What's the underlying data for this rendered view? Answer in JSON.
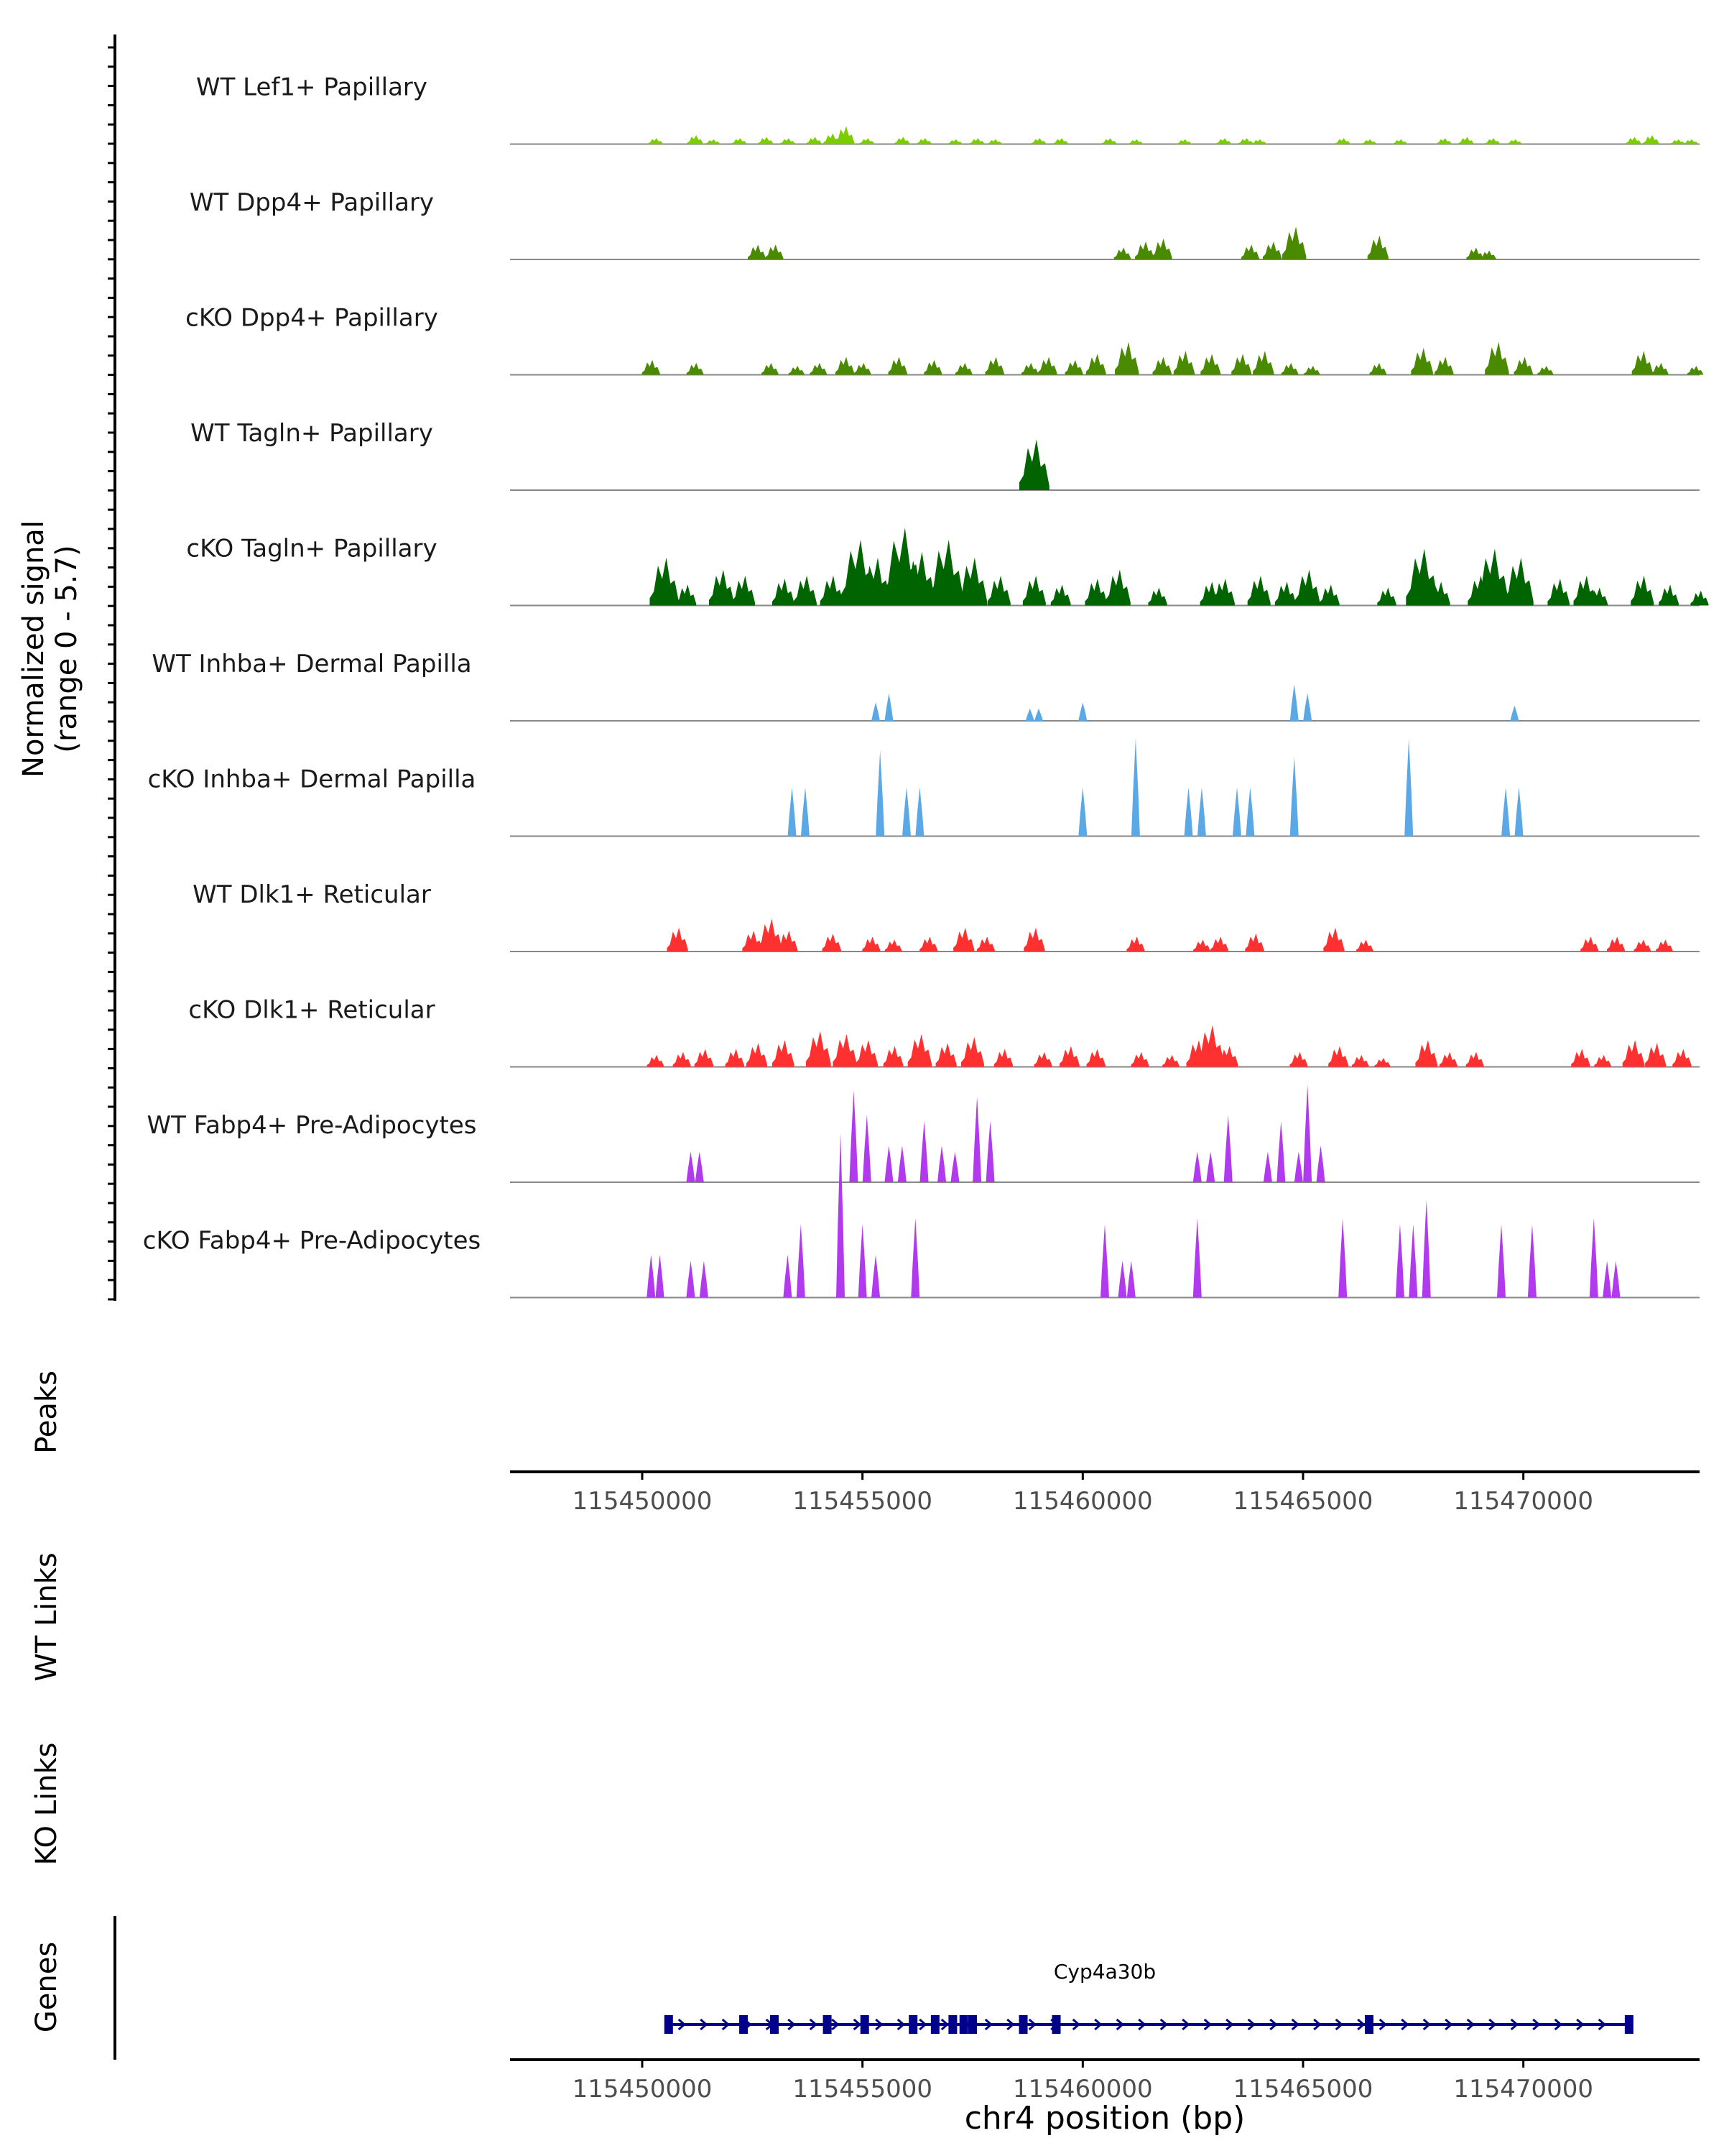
{
  "chart_data": {
    "type": "coverage-tracks",
    "region": {
      "chromosome": "chr4",
      "start": 115447000,
      "end": 115474000
    },
    "y_axis_label": "Normalized signal\n(range 0 - 5.7)",
    "y_range": [
      0,
      5.7
    ],
    "x_axis_label": "chr4 position (bp)",
    "x_ticks": [
      115450000,
      115455000,
      115460000,
      115465000,
      115470000
    ],
    "x_tick_labels": [
      "115450000",
      "115455000",
      "115460000",
      "115465000",
      "115470000"
    ],
    "colors": {
      "lef1": "#7CCD00",
      "dpp4": "#4A8A00",
      "tagln": "#006400",
      "inhba": "#5AA9E6",
      "dlk1": "#FF3030",
      "fabp4": "#B23AEE",
      "gene": "#00008B",
      "baseline": "#888888"
    },
    "tracks": [
      {
        "label": "WT Lef1+ Papillary",
        "color_key": "lef1",
        "style": "dense",
        "peaks": [
          [
            115450300,
            0.1
          ],
          [
            115451200,
            0.15
          ],
          [
            115451600,
            0.08
          ],
          [
            115452200,
            0.1
          ],
          [
            115452800,
            0.12
          ],
          [
            115453300,
            0.1
          ],
          [
            115453900,
            0.12
          ],
          [
            115454300,
            0.18
          ],
          [
            115454600,
            0.3
          ],
          [
            115455100,
            0.1
          ],
          [
            115455900,
            0.12
          ],
          [
            115456400,
            0.1
          ],
          [
            115457100,
            0.08
          ],
          [
            115457600,
            0.1
          ],
          [
            115458000,
            0.08
          ],
          [
            115459000,
            0.1
          ],
          [
            115459500,
            0.1
          ],
          [
            115460600,
            0.1
          ],
          [
            115461200,
            0.08
          ],
          [
            115462300,
            0.08
          ],
          [
            115463200,
            0.1
          ],
          [
            115463700,
            0.1
          ],
          [
            115464000,
            0.08
          ],
          [
            115465900,
            0.1
          ],
          [
            115466500,
            0.08
          ],
          [
            115467200,
            0.08
          ],
          [
            115468200,
            0.1
          ],
          [
            115468700,
            0.12
          ],
          [
            115469300,
            0.1
          ],
          [
            115469800,
            0.08
          ],
          [
            115472500,
            0.12
          ],
          [
            115472900,
            0.15
          ],
          [
            115473500,
            0.08
          ],
          [
            115473800,
            0.08
          ]
        ]
      },
      {
        "label": "WT Dpp4+ Papillary",
        "color_key": "dpp4",
        "style": "dense",
        "peaks": [
          [
            115452600,
            0.25
          ],
          [
            115453000,
            0.25
          ],
          [
            115460900,
            0.2
          ],
          [
            115461400,
            0.3
          ],
          [
            115461800,
            0.35
          ],
          [
            115463800,
            0.25
          ],
          [
            115464300,
            0.3
          ],
          [
            115464800,
            0.55
          ],
          [
            115466700,
            0.4
          ],
          [
            115468900,
            0.2
          ],
          [
            115469200,
            0.15
          ]
        ]
      },
      {
        "label": "cKO Dpp4+ Papillary",
        "color_key": "dpp4",
        "style": "dense",
        "peaks": [
          [
            115450200,
            0.25
          ],
          [
            115451200,
            0.2
          ],
          [
            115452900,
            0.2
          ],
          [
            115453500,
            0.15
          ],
          [
            115454000,
            0.2
          ],
          [
            115454600,
            0.3
          ],
          [
            115455000,
            0.2
          ],
          [
            115455800,
            0.3
          ],
          [
            115456600,
            0.25
          ],
          [
            115457300,
            0.2
          ],
          [
            115458000,
            0.3
          ],
          [
            115458800,
            0.2
          ],
          [
            115459200,
            0.3
          ],
          [
            115459800,
            0.25
          ],
          [
            115460300,
            0.35
          ],
          [
            115461000,
            0.55
          ],
          [
            115461800,
            0.3
          ],
          [
            115462300,
            0.4
          ],
          [
            115462900,
            0.35
          ],
          [
            115463600,
            0.35
          ],
          [
            115464100,
            0.4
          ],
          [
            115464700,
            0.2
          ],
          [
            115465200,
            0.15
          ],
          [
            115466700,
            0.2
          ],
          [
            115467700,
            0.45
          ],
          [
            115468200,
            0.3
          ],
          [
            115469400,
            0.55
          ],
          [
            115470000,
            0.3
          ],
          [
            115470500,
            0.15
          ],
          [
            115472700,
            0.4
          ],
          [
            115473100,
            0.2
          ],
          [
            115473900,
            0.15
          ]
        ]
      },
      {
        "label": "WT Tagln+ Papillary",
        "color_key": "tagln",
        "style": "dense",
        "peaks": [
          [
            115458900,
            0.85
          ]
        ]
      },
      {
        "label": "cKO Tagln+ Papillary",
        "color_key": "tagln",
        "style": "dense",
        "peaks": [
          [
            115450500,
            0.8
          ],
          [
            115451000,
            0.35
          ],
          [
            115451800,
            0.6
          ],
          [
            115452300,
            0.5
          ],
          [
            115453200,
            0.45
          ],
          [
            115453700,
            0.5
          ],
          [
            115454300,
            0.5
          ],
          [
            115454900,
            1.1
          ],
          [
            115455300,
            0.8
          ],
          [
            115455900,
            1.3
          ],
          [
            115456300,
            0.9
          ],
          [
            115456900,
            1.1
          ],
          [
            115457500,
            0.8
          ],
          [
            115458100,
            0.5
          ],
          [
            115458900,
            0.5
          ],
          [
            115459500,
            0.35
          ],
          [
            115460300,
            0.45
          ],
          [
            115460800,
            0.6
          ],
          [
            115461700,
            0.3
          ],
          [
            115462900,
            0.4
          ],
          [
            115463200,
            0.45
          ],
          [
            115464000,
            0.5
          ],
          [
            115464600,
            0.4
          ],
          [
            115465100,
            0.6
          ],
          [
            115465600,
            0.35
          ],
          [
            115466900,
            0.3
          ],
          [
            115467700,
            0.95
          ],
          [
            115468100,
            0.4
          ],
          [
            115469000,
            0.5
          ],
          [
            115469300,
            0.95
          ],
          [
            115469900,
            0.8
          ],
          [
            115470800,
            0.45
          ],
          [
            115471400,
            0.5
          ],
          [
            115471700,
            0.3
          ],
          [
            115472700,
            0.5
          ],
          [
            115473300,
            0.35
          ],
          [
            115474000,
            0.25
          ]
        ]
      },
      {
        "label": "WT Inhba+ Dermal Papilla",
        "color_key": "inhba",
        "style": "spiky",
        "peaks": [
          [
            115455300,
            0.3
          ],
          [
            115455600,
            0.45
          ],
          [
            115458800,
            0.2
          ],
          [
            115459000,
            0.2
          ],
          [
            115460000,
            0.3
          ],
          [
            115464800,
            0.6
          ],
          [
            115465100,
            0.45
          ],
          [
            115469800,
            0.25
          ]
        ]
      },
      {
        "label": "cKO Inhba+ Dermal Papilla",
        "color_key": "inhba",
        "style": "spiky",
        "peaks": [
          [
            115453400,
            0.8
          ],
          [
            115453700,
            0.8
          ],
          [
            115455400,
            1.4
          ],
          [
            115456000,
            0.8
          ],
          [
            115456300,
            0.8
          ],
          [
            115460000,
            0.8
          ],
          [
            115461200,
            1.6
          ],
          [
            115462400,
            0.8
          ],
          [
            115462700,
            0.8
          ],
          [
            115463500,
            0.8
          ],
          [
            115463800,
            0.8
          ],
          [
            115464800,
            1.3
          ],
          [
            115467400,
            1.6
          ],
          [
            115469600,
            0.8
          ],
          [
            115469900,
            0.8
          ]
        ]
      },
      {
        "label": "WT Dlk1+ Reticular",
        "color_key": "dlk1",
        "style": "dense",
        "peaks": [
          [
            115450800,
            0.4
          ],
          [
            115452500,
            0.35
          ],
          [
            115452900,
            0.55
          ],
          [
            115453300,
            0.35
          ],
          [
            115454300,
            0.3
          ],
          [
            115455200,
            0.25
          ],
          [
            115455700,
            0.2
          ],
          [
            115456500,
            0.25
          ],
          [
            115457300,
            0.4
          ],
          [
            115457800,
            0.25
          ],
          [
            115458900,
            0.4
          ],
          [
            115461200,
            0.25
          ],
          [
            115462700,
            0.2
          ],
          [
            115463100,
            0.25
          ],
          [
            115463900,
            0.3
          ],
          [
            115465700,
            0.4
          ],
          [
            115466400,
            0.2
          ],
          [
            115471500,
            0.25
          ],
          [
            115472100,
            0.25
          ],
          [
            115472700,
            0.2
          ],
          [
            115473200,
            0.2
          ]
        ]
      },
      {
        "label": "cKO Dlk1+ Reticular",
        "color_key": "dlk1",
        "style": "dense",
        "peaks": [
          [
            115450300,
            0.2
          ],
          [
            115450900,
            0.25
          ],
          [
            115451400,
            0.3
          ],
          [
            115452100,
            0.3
          ],
          [
            115452600,
            0.4
          ],
          [
            115453200,
            0.45
          ],
          [
            115454000,
            0.6
          ],
          [
            115454600,
            0.55
          ],
          [
            115455100,
            0.45
          ],
          [
            115455700,
            0.35
          ],
          [
            115456300,
            0.55
          ],
          [
            115456900,
            0.4
          ],
          [
            115457500,
            0.5
          ],
          [
            115458200,
            0.3
          ],
          [
            115459100,
            0.25
          ],
          [
            115459700,
            0.35
          ],
          [
            115460300,
            0.3
          ],
          [
            115461300,
            0.25
          ],
          [
            115462000,
            0.2
          ],
          [
            115462600,
            0.45
          ],
          [
            115462900,
            0.7
          ],
          [
            115463300,
            0.35
          ],
          [
            115464900,
            0.25
          ],
          [
            115465800,
            0.35
          ],
          [
            115466300,
            0.2
          ],
          [
            115466800,
            0.15
          ],
          [
            115467800,
            0.45
          ],
          [
            115468300,
            0.25
          ],
          [
            115468900,
            0.25
          ],
          [
            115471300,
            0.3
          ],
          [
            115471800,
            0.2
          ],
          [
            115472500,
            0.45
          ],
          [
            115473000,
            0.4
          ],
          [
            115473600,
            0.3
          ]
        ]
      },
      {
        "label": "WT Fabp4+ Pre-Adipocytes",
        "color_key": "fabp4",
        "style": "spiky",
        "peaks": [
          [
            115451100,
            0.5
          ],
          [
            115451300,
            0.5
          ],
          [
            115454800,
            1.5
          ],
          [
            115455100,
            1.1
          ],
          [
            115455600,
            0.6
          ],
          [
            115455900,
            0.6
          ],
          [
            115456400,
            1.0
          ],
          [
            115456800,
            0.6
          ],
          [
            115457100,
            0.5
          ],
          [
            115457600,
            1.4
          ],
          [
            115457900,
            1.0
          ],
          [
            115462600,
            0.5
          ],
          [
            115462900,
            0.5
          ],
          [
            115463300,
            1.1
          ],
          [
            115464200,
            0.5
          ],
          [
            115464500,
            1.0
          ],
          [
            115464900,
            0.5
          ],
          [
            115465100,
            1.6
          ],
          [
            115465400,
            0.6
          ]
        ]
      },
      {
        "label": "cKO Fabp4+ Pre-Adipocytes",
        "color_key": "fabp4",
        "style": "spiky",
        "peaks": [
          [
            115450200,
            0.7
          ],
          [
            115450400,
            0.7
          ],
          [
            115451100,
            0.6
          ],
          [
            115451400,
            0.6
          ],
          [
            115453300,
            0.7
          ],
          [
            115453600,
            1.2
          ],
          [
            115454500,
            2.7
          ],
          [
            115455000,
            1.2
          ],
          [
            115455300,
            0.7
          ],
          [
            115456200,
            1.3
          ],
          [
            115460500,
            1.2
          ],
          [
            115460900,
            0.6
          ],
          [
            115461100,
            0.6
          ],
          [
            115462600,
            1.3
          ],
          [
            115465900,
            1.3
          ],
          [
            115467200,
            1.2
          ],
          [
            115467500,
            1.2
          ],
          [
            115467800,
            1.6
          ],
          [
            115469500,
            1.2
          ],
          [
            115470200,
            1.2
          ],
          [
            115471600,
            1.3
          ],
          [
            115471900,
            0.6
          ],
          [
            115472100,
            0.6
          ]
        ]
      }
    ],
    "peaks_track_label": "Peaks",
    "wt_links_label": "WT Links",
    "ko_links_label": "KO Links",
    "genes_track_label": "Genes",
    "gene": {
      "name": "Cyp4a30b",
      "start": 115450550,
      "end": 115472450,
      "strand": "+",
      "exons": [
        115450600,
        115452300,
        115453000,
        115454200,
        115455050,
        115456150,
        115456650,
        115457050,
        115457300,
        115457500,
        115458650,
        115459400,
        115466500,
        115472400
      ]
    }
  }
}
